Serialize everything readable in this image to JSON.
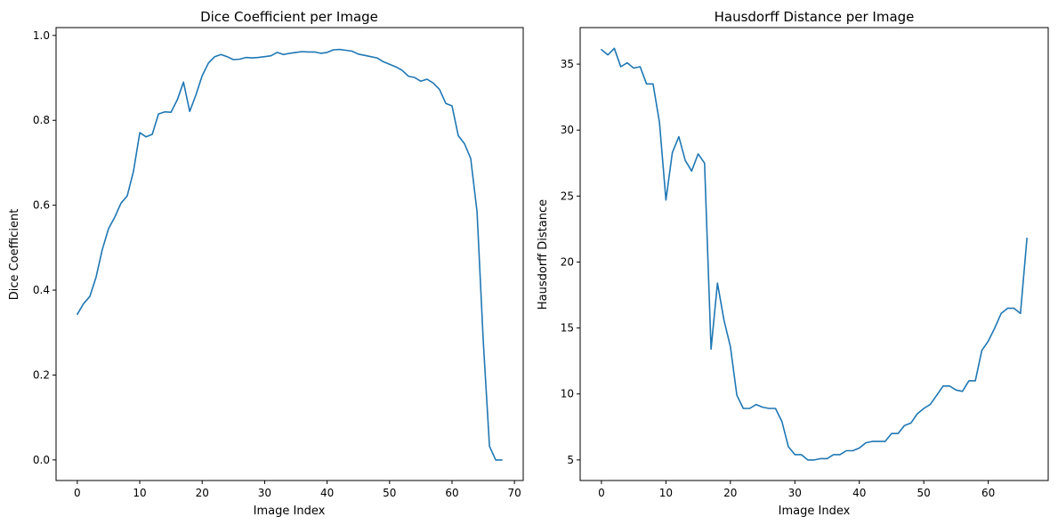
{
  "colors": {
    "line": "#1f77b4",
    "axis": "#000000",
    "background": "#ffffff"
  },
  "chart_data": [
    {
      "type": "line",
      "title": "Dice Coefficient per Image",
      "xlabel": "Image Index",
      "ylabel": "Dice Coefficient",
      "xlim": [
        -3.4,
        71.4
      ],
      "ylim": [
        -0.0485,
        1.0185
      ],
      "xticks": [
        0,
        10,
        20,
        30,
        40,
        50,
        60,
        70
      ],
      "xtick_labels": [
        "0",
        "10",
        "20",
        "30",
        "40",
        "50",
        "60",
        "70"
      ],
      "yticks": [
        0.0,
        0.2,
        0.4,
        0.6,
        0.8,
        1.0
      ],
      "ytick_labels": [
        "0.0",
        "0.2",
        "0.4",
        "0.6",
        "0.8",
        "1.0"
      ],
      "grid": false,
      "series": [
        {
          "x": [
            0,
            1,
            2,
            3,
            4,
            5,
            6,
            7,
            8,
            9,
            10,
            11,
            12,
            13,
            14,
            15,
            16,
            17,
            18,
            19,
            20,
            21,
            22,
            23,
            24,
            25,
            26,
            27,
            28,
            29,
            30,
            31,
            32,
            33,
            34,
            35,
            36,
            37,
            38,
            39,
            40,
            41,
            42,
            43,
            44,
            45,
            46,
            47,
            48,
            49,
            50,
            51,
            52,
            53,
            54,
            55,
            56,
            57,
            58,
            59,
            60,
            61,
            62,
            63,
            64,
            65,
            66,
            67,
            68
          ],
          "y": [
            0.343,
            0.368,
            0.385,
            0.43,
            0.495,
            0.545,
            0.572,
            0.605,
            0.622,
            0.68,
            0.771,
            0.761,
            0.767,
            0.815,
            0.82,
            0.819,
            0.848,
            0.89,
            0.821,
            0.86,
            0.905,
            0.935,
            0.95,
            0.955,
            0.95,
            0.943,
            0.944,
            0.948,
            0.947,
            0.948,
            0.95,
            0.952,
            0.96,
            0.955,
            0.958,
            0.96,
            0.962,
            0.961,
            0.961,
            0.958,
            0.96,
            0.966,
            0.967,
            0.965,
            0.963,
            0.956,
            0.953,
            0.95,
            0.947,
            0.938,
            0.932,
            0.926,
            0.918,
            0.904,
            0.901,
            0.892,
            0.897,
            0.888,
            0.873,
            0.84,
            0.834,
            0.764,
            0.745,
            0.71,
            0.585,
            0.28,
            0.032,
            0.0,
            0.0
          ]
        }
      ]
    },
    {
      "type": "line",
      "title": "Hausdorff Distance per Image",
      "xlabel": "Image Index",
      "ylabel": "Hausdorff Distance",
      "xlim": [
        -3.3,
        69.3
      ],
      "ylim": [
        3.44,
        37.77
      ],
      "xticks": [
        0,
        10,
        20,
        30,
        40,
        50,
        60
      ],
      "xtick_labels": [
        "0",
        "10",
        "20",
        "30",
        "40",
        "50",
        "60"
      ],
      "yticks": [
        5,
        10,
        15,
        20,
        25,
        30,
        35
      ],
      "ytick_labels": [
        "5",
        "10",
        "15",
        "20",
        "25",
        "30",
        "35"
      ],
      "grid": false,
      "series": [
        {
          "x": [
            0,
            1,
            2,
            3,
            4,
            5,
            6,
            7,
            8,
            9,
            10,
            11,
            12,
            13,
            14,
            15,
            16,
            17,
            18,
            19,
            20,
            21,
            22,
            23,
            24,
            25,
            26,
            27,
            28,
            29,
            30,
            31,
            32,
            33,
            34,
            35,
            36,
            37,
            38,
            39,
            40,
            41,
            42,
            43,
            44,
            45,
            46,
            47,
            48,
            49,
            50,
            51,
            52,
            53,
            54,
            55,
            56,
            57,
            58,
            59,
            60,
            61,
            62,
            63,
            64,
            65,
            66
          ],
          "y": [
            36.1,
            35.7,
            36.2,
            34.8,
            35.1,
            34.7,
            34.8,
            33.5,
            33.5,
            30.6,
            24.7,
            28.3,
            29.5,
            27.7,
            26.9,
            28.2,
            27.5,
            13.4,
            18.4,
            15.6,
            13.6,
            9.9,
            8.9,
            8.9,
            9.2,
            9.0,
            8.9,
            8.9,
            7.9,
            6.0,
            5.4,
            5.4,
            5.0,
            5.0,
            5.1,
            5.1,
            5.4,
            5.4,
            5.7,
            5.7,
            5.9,
            6.3,
            6.4,
            6.4,
            6.4,
            7.0,
            7.0,
            7.6,
            7.8,
            8.5,
            8.9,
            9.2,
            9.9,
            10.6,
            10.6,
            10.3,
            10.2,
            11.0,
            11.0,
            13.3,
            14.0,
            15.0,
            16.1,
            16.5,
            16.5,
            16.1,
            21.8
          ]
        }
      ]
    }
  ]
}
